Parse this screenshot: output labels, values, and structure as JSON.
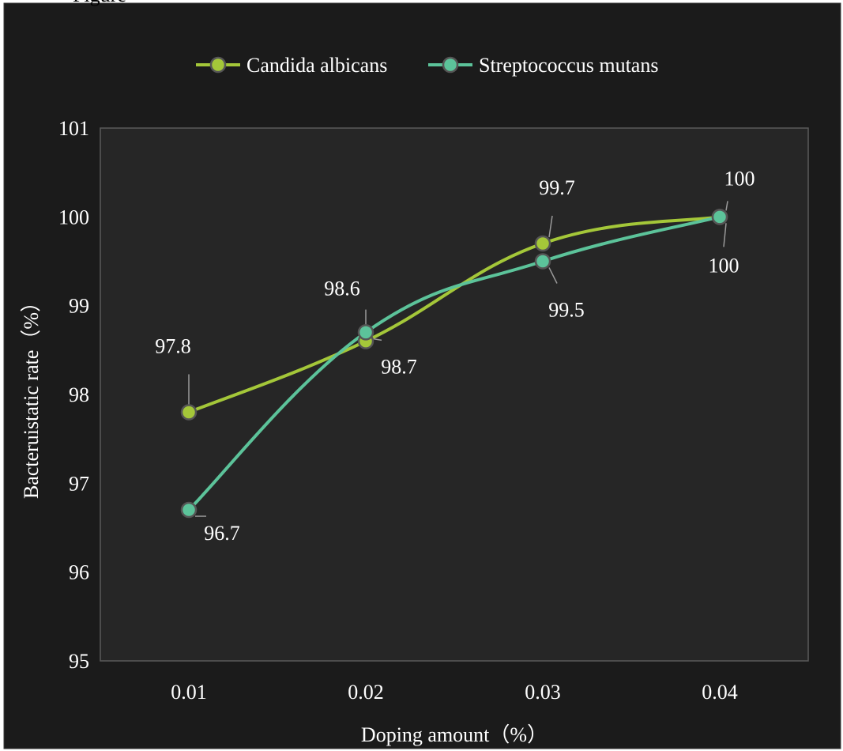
{
  "top_fragment": "Figure",
  "colors": {
    "outer_bg": "#1b1b1b",
    "plot_bg": "#262626",
    "grid": "#5a5a5a",
    "text": "#ffffff"
  },
  "chart_data": {
    "type": "line",
    "title": "",
    "xlabel": "Doping amount（%）",
    "ylabel": "Bacteruistatic rate（%）",
    "categories": [
      "0.01",
      "0.02",
      "0.03",
      "0.04"
    ],
    "ylim": [
      95,
      101
    ],
    "yticks": [
      "95",
      "96",
      "97",
      "98",
      "99",
      "100",
      "101"
    ],
    "grid": false,
    "legend_position": "top",
    "smooth": true,
    "series": [
      {
        "name": "Candida albicans",
        "color": "#a4c739",
        "values": [
          97.8,
          98.6,
          99.7,
          100
        ],
        "labels": [
          "97.8",
          "98.6",
          "99.7",
          "100"
        ]
      },
      {
        "name": "Streptococcus mutans",
        "color": "#5cc39a",
        "values": [
          96.7,
          98.7,
          99.5,
          100
        ],
        "labels": [
          "96.7",
          "98.7",
          "99.5",
          "100"
        ]
      }
    ]
  }
}
